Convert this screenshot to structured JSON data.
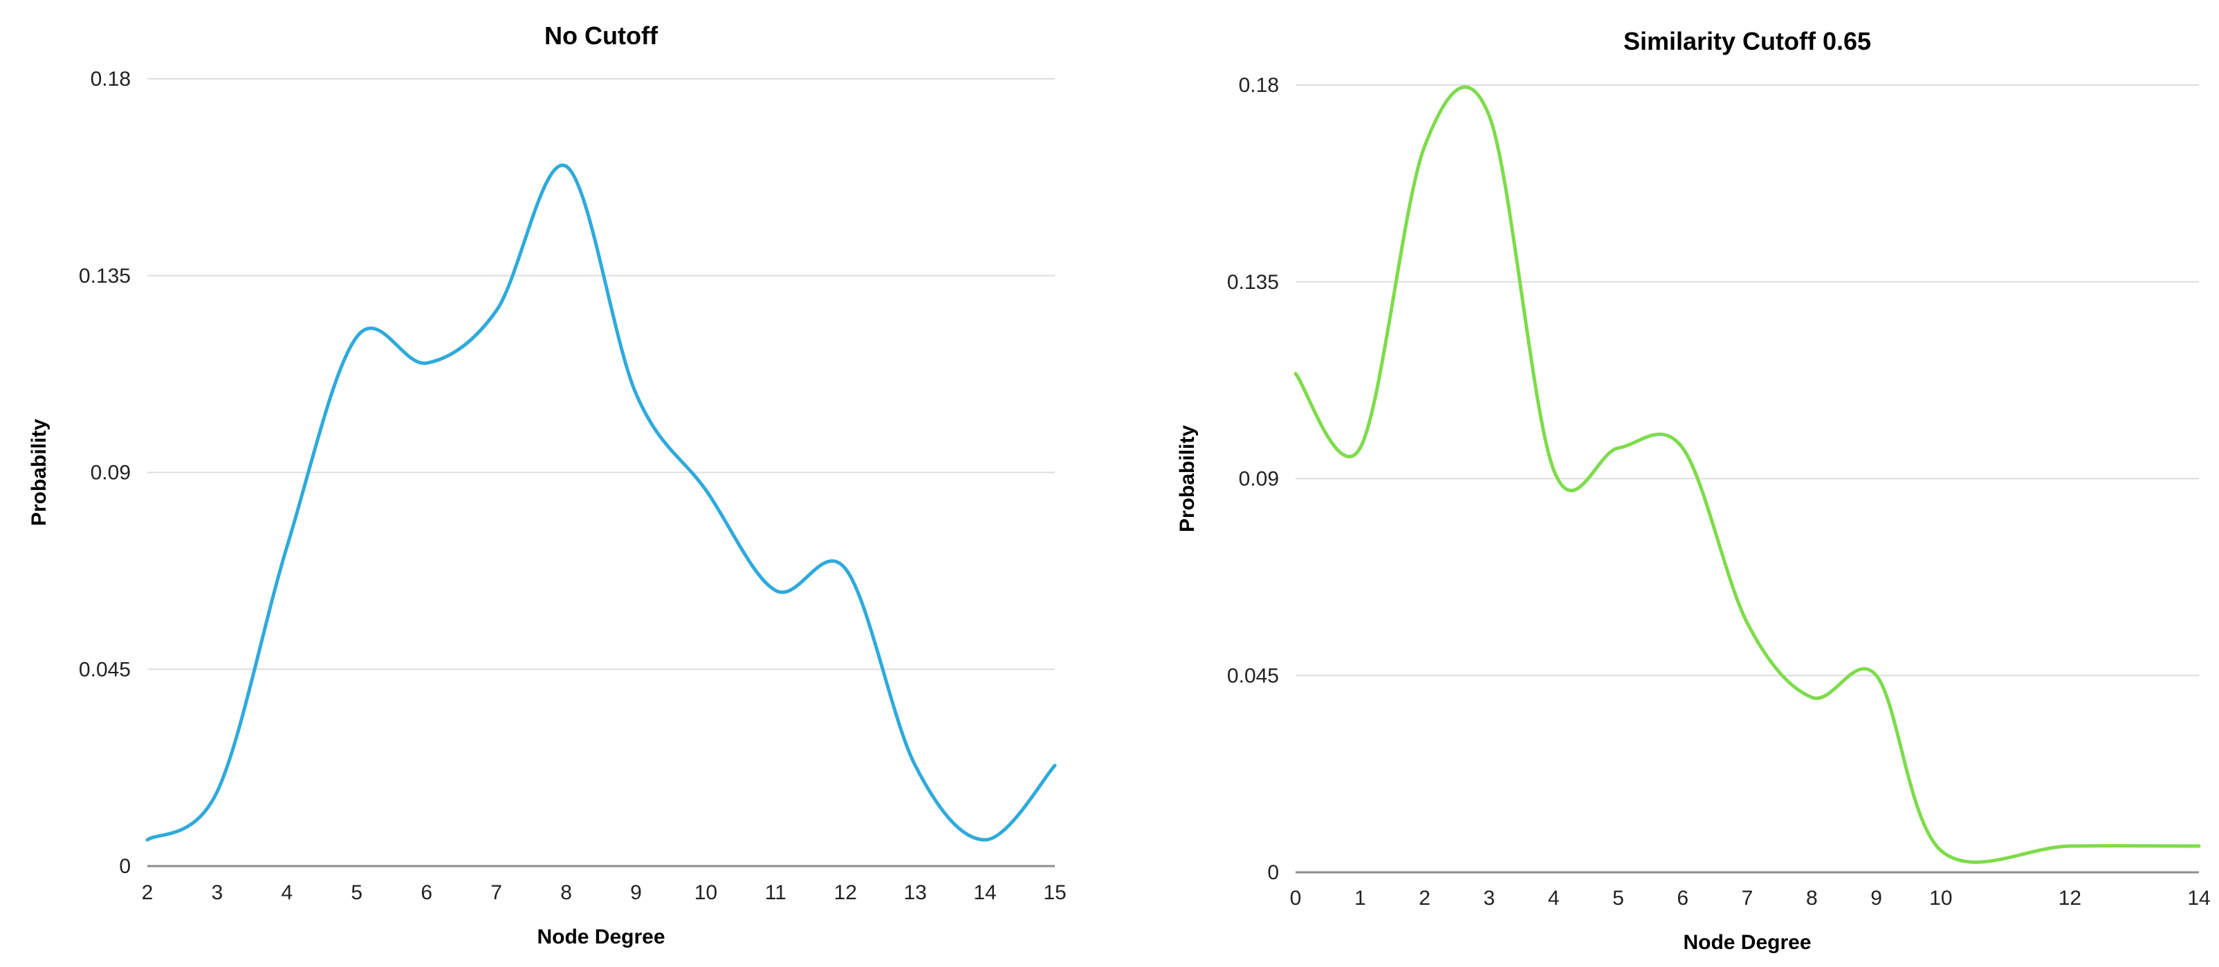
{
  "chart_data": [
    {
      "type": "line",
      "title": "No Cutoff",
      "xlabel": "Node Degree",
      "ylabel": "Probability",
      "x": [
        2,
        3,
        4,
        5,
        6,
        7,
        8,
        9,
        10,
        11,
        12,
        13,
        14,
        15
      ],
      "series": [
        {
          "values": [
            0.006,
            0.017,
            0.073,
            0.121,
            0.115,
            0.127,
            0.16,
            0.108,
            0.086,
            0.063,
            0.068,
            0.023,
            0.006,
            0.023
          ]
        }
      ],
      "xlim": [
        2,
        15
      ],
      "ylim": [
        0,
        0.18
      ],
      "xticks": [
        "2",
        "3",
        "4",
        "5",
        "6",
        "7",
        "8",
        "9",
        "10",
        "11",
        "12",
        "13",
        "14",
        "15"
      ],
      "yticks": [
        "0",
        "0.045",
        "0.09",
        "0.135",
        "0.18"
      ],
      "grid": true,
      "legend": "none",
      "color": "#2eaadc"
    },
    {
      "type": "line",
      "title": "Similarity Cutoff 0.65",
      "xlabel": "Node Degree",
      "ylabel": "Probability",
      "x": [
        0,
        1,
        2,
        3,
        4,
        5,
        6,
        7,
        8,
        9,
        10,
        12,
        14
      ],
      "series": [
        {
          "values": [
            0.114,
            0.097,
            0.166,
            0.173,
            0.092,
            0.097,
            0.097,
            0.057,
            0.04,
            0.045,
            0.005,
            0.006,
            0.006
          ]
        }
      ],
      "xlim": [
        0,
        14
      ],
      "ylim": [
        0,
        0.18
      ],
      "xticks": [
        "0",
        "1",
        "2",
        "3",
        "4",
        "5",
        "6",
        "7",
        "8",
        "9",
        "10",
        "12",
        "14"
      ],
      "yticks": [
        "0",
        "0.045",
        "0.09",
        "0.135",
        "0.18"
      ],
      "grid": true,
      "legend": "none",
      "color": "#7ddc4a"
    }
  ]
}
